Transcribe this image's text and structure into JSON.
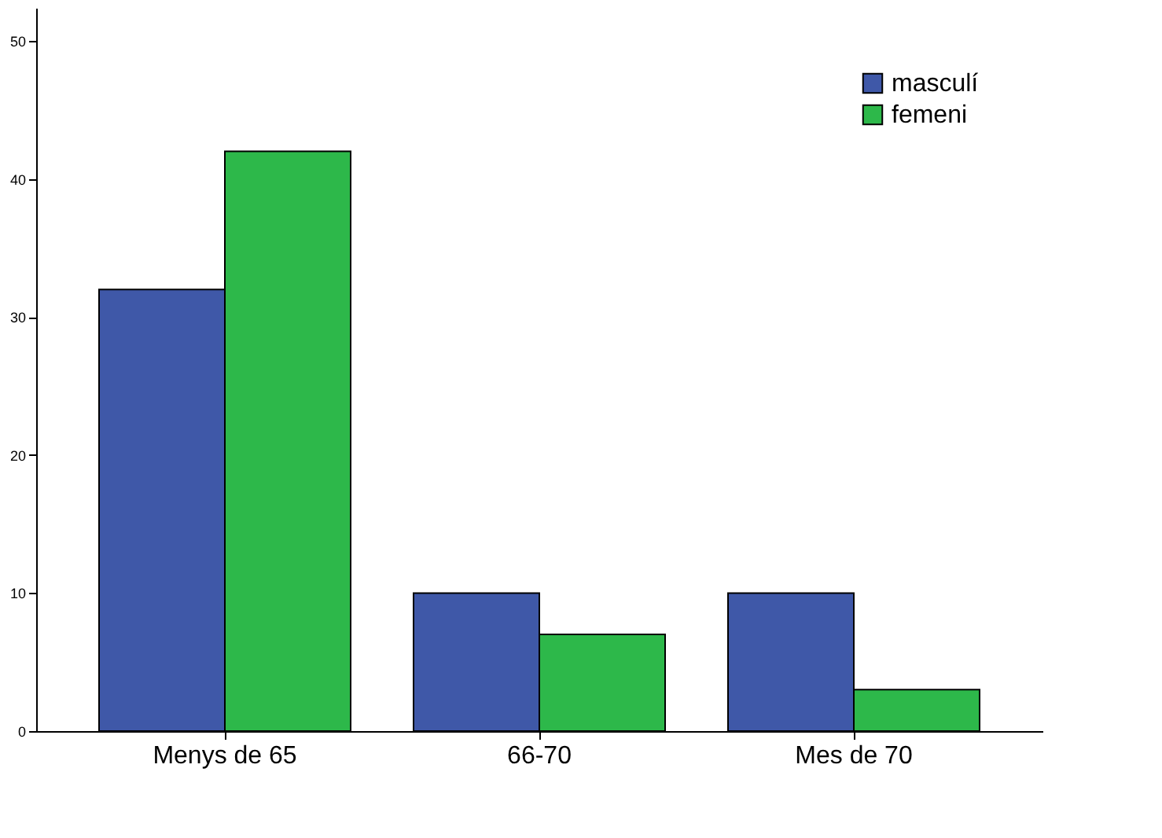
{
  "chart_data": {
    "type": "bar",
    "categories": [
      "Menys de 65",
      "66-70",
      "Mes de 70"
    ],
    "series": [
      {
        "name": "masculí",
        "color": "#3f58a8",
        "values": [
          32,
          10,
          10
        ]
      },
      {
        "name": "femeni",
        "color": "#2db84a",
        "values": [
          42,
          7,
          3
        ]
      }
    ],
    "ylim": [
      0,
      52.4
    ],
    "yticks": [
      0,
      10,
      20,
      30,
      40,
      50
    ],
    "grid": false,
    "legend": "top right"
  }
}
